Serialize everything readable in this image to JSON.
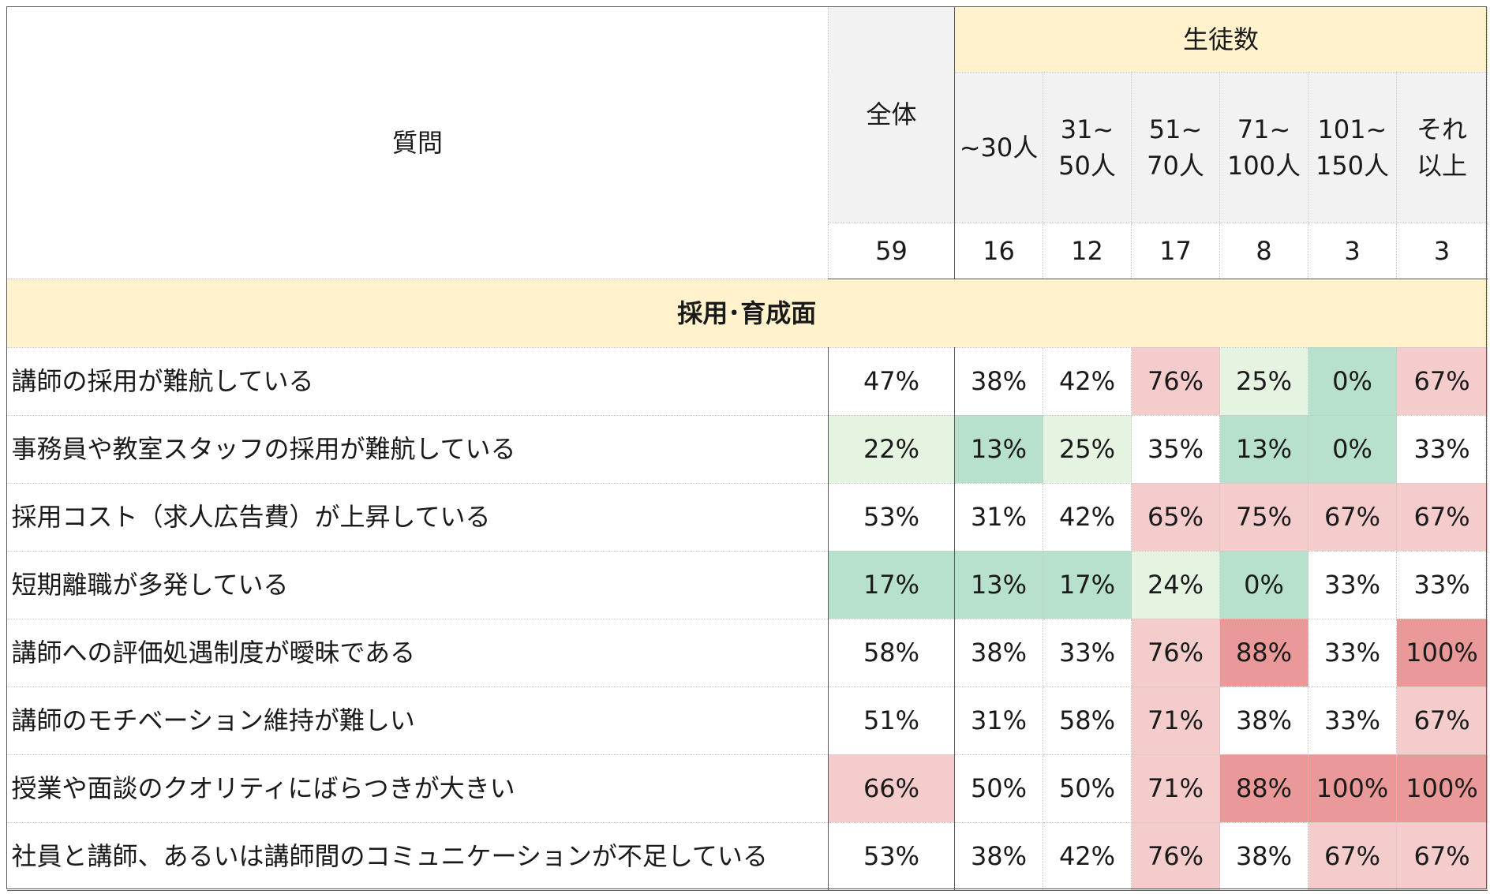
{
  "header": {
    "question": "質問",
    "total": "全体",
    "students": "生徒数",
    "buckets": [
      [
        "~30人",
        ""
      ],
      [
        "31~",
        "50人"
      ],
      [
        "51~",
        "70人"
      ],
      [
        "71~",
        "100人"
      ],
      [
        "101~",
        "150人"
      ],
      [
        "それ",
        "以上"
      ]
    ],
    "counts": [
      "59",
      "16",
      "12",
      "17",
      "8",
      "3",
      "3"
    ]
  },
  "section": {
    "title": "採用･育成面"
  },
  "rows": [
    {
      "q": "講師の採用が難航している",
      "v": [
        "47%",
        "38%",
        "42%",
        "76%",
        "25%",
        "0%",
        "67%"
      ],
      "c": [
        "",
        "",
        "",
        "r1",
        "g1",
        "g2",
        "r1"
      ]
    },
    {
      "q": "事務員や教室スタッフの採用が難航している",
      "v": [
        "22%",
        "13%",
        "25%",
        "35%",
        "13%",
        "0%",
        "33%"
      ],
      "c": [
        "g1",
        "g2",
        "g1",
        "",
        "g2",
        "g2",
        ""
      ]
    },
    {
      "q": "採用コスト（求人広告費）が上昇している",
      "v": [
        "53%",
        "31%",
        "42%",
        "65%",
        "75%",
        "67%",
        "67%"
      ],
      "c": [
        "",
        "",
        "",
        "r1",
        "r1",
        "r1",
        "r1"
      ]
    },
    {
      "q": "短期離職が多発している",
      "v": [
        "17%",
        "13%",
        "17%",
        "24%",
        "0%",
        "33%",
        "33%"
      ],
      "c": [
        "g2",
        "g2",
        "g2",
        "g1",
        "g2",
        "",
        ""
      ]
    },
    {
      "q": "講師への評価処遇制度が曖昧である",
      "v": [
        "58%",
        "38%",
        "33%",
        "76%",
        "88%",
        "33%",
        "100%"
      ],
      "c": [
        "",
        "",
        "",
        "r1",
        "r2",
        "",
        "r2"
      ]
    },
    {
      "q": "講師のモチベーション維持が難しい",
      "v": [
        "51%",
        "31%",
        "58%",
        "71%",
        "38%",
        "33%",
        "67%"
      ],
      "c": [
        "",
        "",
        "",
        "r1",
        "",
        "",
        "r1"
      ]
    },
    {
      "q": "授業や面談のクオリティにばらつきが大きい",
      "v": [
        "66%",
        "50%",
        "50%",
        "71%",
        "88%",
        "100%",
        "100%"
      ],
      "c": [
        "r1",
        "",
        "",
        "r1",
        "r2",
        "r2",
        "r2"
      ]
    },
    {
      "q": "社員と講師、あるいは講師間のコミュニケーションが不足している",
      "v": [
        "53%",
        "38%",
        "42%",
        "76%",
        "38%",
        "67%",
        "67%"
      ],
      "c": [
        "",
        "",
        "",
        "r1",
        "",
        "r1",
        "r1"
      ]
    }
  ],
  "colors": {
    "header_yellow": "#fff2cc",
    "header_gray": "#f2f2f2",
    "light_green": "#e5f3e1",
    "green": "#b7e1cd",
    "light_red": "#f4cccc",
    "red": "#ea9999"
  }
}
